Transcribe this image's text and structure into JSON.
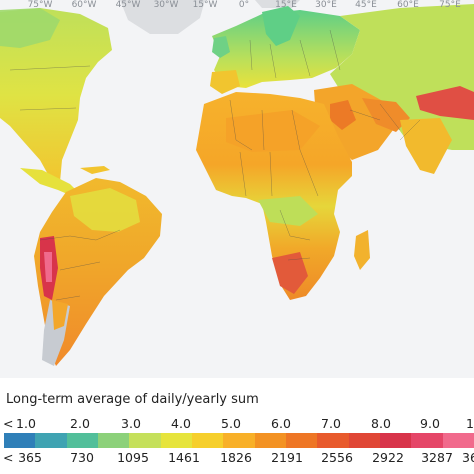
{
  "map": {
    "longitude_labels": [
      "75°W",
      "60°W",
      "45°W",
      "30°W",
      "15°W",
      "0°",
      "15°E",
      "30°E",
      "45°E",
      "60°E",
      "75°E"
    ]
  },
  "legend": {
    "title": "Long-term average of daily/yearly sum",
    "less_than_symbol": "<",
    "daily_values": [
      "1.0",
      "2.0",
      "3.0",
      "4.0",
      "5.0",
      "6.0",
      "7.0",
      "8.0",
      "9.0",
      "1"
    ],
    "yearly_values": [
      "365",
      "730",
      "1095",
      "1461",
      "1826",
      "2191",
      "2556",
      "2922",
      "3287",
      "36"
    ],
    "colors": [
      "#2f7fb8",
      "#3fa3b2",
      "#52bf9a",
      "#8cd17a",
      "#c5e05b",
      "#e6e43c",
      "#f6cf2c",
      "#f8b028",
      "#f39223",
      "#ee7625",
      "#e85a2c",
      "#e04635",
      "#d8344a",
      "#e54668",
      "#f16a8c"
    ]
  }
}
